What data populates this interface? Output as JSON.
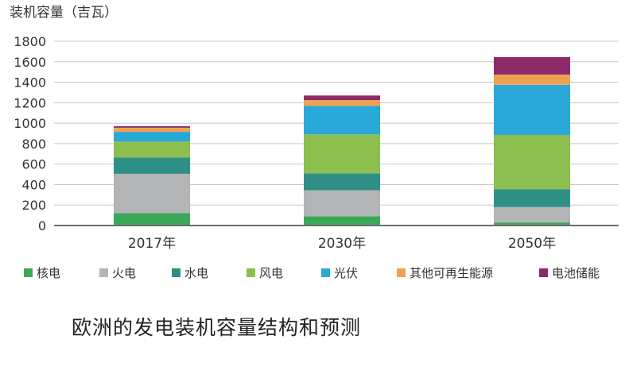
{
  "caption": "欧洲的发电装机容量结构和预测",
  "chart_data": {
    "type": "bar",
    "stacked": true,
    "unit_label": "装机容量（吉瓦）",
    "categories": [
      "2017年",
      "2030年",
      "2050年"
    ],
    "ylim": [
      0,
      1800
    ],
    "yticks": [
      0,
      200,
      400,
      600,
      800,
      1000,
      1200,
      1400,
      1600,
      1800
    ],
    "grid": true,
    "legend_position": "bottom",
    "series": [
      {
        "name": "核电",
        "color": "#3aa858",
        "values": [
          120,
          90,
          30
        ]
      },
      {
        "name": "火电",
        "color": "#b3b4b6",
        "values": [
          385,
          255,
          150
        ]
      },
      {
        "name": "水电",
        "color": "#2e8f85",
        "values": [
          160,
          165,
          175
        ]
      },
      {
        "name": "风电",
        "color": "#8cbf4f",
        "values": [
          155,
          380,
          530
        ]
      },
      {
        "name": "光伏",
        "color": "#2aa8d8",
        "values": [
          95,
          280,
          490
        ]
      },
      {
        "name": "其他可再生能源",
        "color": "#f0a252",
        "values": [
          40,
          55,
          100
        ]
      },
      {
        "name": "电池储能",
        "color": "#8c2a6a",
        "values": [
          15,
          45,
          170
        ]
      }
    ]
  }
}
